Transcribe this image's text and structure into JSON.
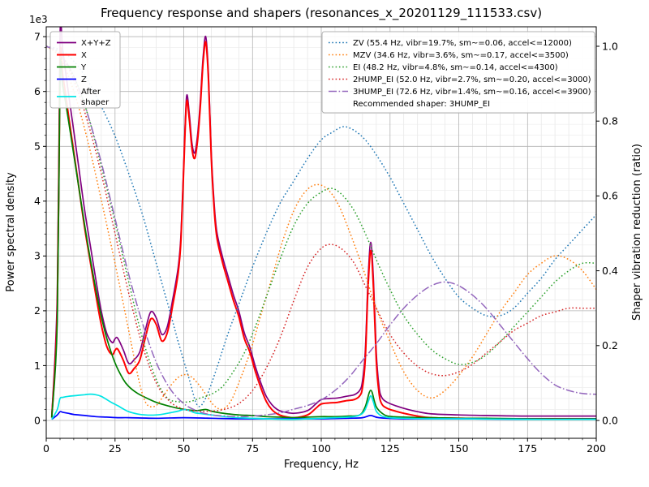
{
  "title": "Frequency response and shapers (resonances_x_20201129_111533.csv)",
  "axes": {
    "x": {
      "label": "Frequency, Hz",
      "min": 0,
      "max": 200,
      "ticks": [
        0,
        25,
        50,
        75,
        100,
        125,
        150,
        175,
        200
      ],
      "minor_step": 5
    },
    "y_left": {
      "label": "Power spectral density",
      "multiplier": "1e3",
      "min": 0,
      "max": 7,
      "ticks": [
        0,
        1,
        2,
        3,
        4,
        5,
        6,
        7
      ],
      "minor_step": 0.2
    },
    "y_right": {
      "label": "Shaper vibration reduction (ratio)",
      "min": 0,
      "max": 1,
      "ticks": [
        "0.0",
        "0.2",
        "0.4",
        "0.6",
        "0.8",
        "1.0"
      ]
    }
  },
  "legend_psd": {
    "items": [
      {
        "series": "X+Y+Z",
        "label": "X+Y+Z"
      },
      {
        "series": "X",
        "label": "X"
      },
      {
        "series": "Y",
        "label": "Y"
      },
      {
        "series": "Z",
        "label": "Z"
      },
      {
        "series": "After shaper",
        "label": "After\nshaper"
      }
    ]
  },
  "legend_shapers": {
    "items": [
      {
        "series": "ZV",
        "label": "ZV (55.4 Hz, vibr=19.7%, sm~=0.06, accel<=12000)"
      },
      {
        "series": "MZV",
        "label": "MZV (34.6 Hz, vibr=3.6%, sm~=0.17, accel<=3500)"
      },
      {
        "series": "EI",
        "label": "EI (48.2 Hz, vibr=4.8%, sm~=0.14, accel<=4300)"
      },
      {
        "series": "2HUMP_EI",
        "label": "2HUMP_EI (52.0 Hz, vibr=2.7%, sm~=0.20, accel<=3000)"
      },
      {
        "series": "3HUMP_EI",
        "label": "3HUMP_EI (72.6 Hz, vibr=1.4%, sm~=0.16, accel<=3900)"
      }
    ],
    "note": "Recommended shaper: 3HUMP_EI"
  },
  "chart_data": {
    "type": "line",
    "title": "Frequency response and shapers (resonances_x_20201129_111533.csv)",
    "xlabel": "Frequency, Hz",
    "ylabel": "Power spectral density",
    "ylabel_right": "Shaper vibration reduction (ratio)",
    "xlim": [
      0,
      200
    ],
    "ylim_left": [
      0,
      7000
    ],
    "psd_scale": 1000,
    "ylim_right": [
      0,
      1.0
    ],
    "grid": "major grey + minor lightgrey, both axes",
    "legend_positions": [
      "upper left",
      "upper right"
    ],
    "recommended_shaper": "3HUMP_EI",
    "series": [
      {
        "name": "X+Y+Z",
        "axis": "left",
        "color": "#800080",
        "style": "solid",
        "width": 1.7,
        "x": [
          2,
          4,
          5,
          6,
          8,
          10,
          12,
          14,
          16,
          18,
          20,
          22,
          24,
          25,
          26,
          28,
          30,
          32,
          34,
          36,
          38,
          40,
          42,
          44,
          46,
          48,
          49,
          50,
          51,
          52,
          53,
          54,
          55,
          56,
          57,
          58,
          59,
          60,
          61,
          62,
          64,
          66,
          68,
          70,
          72,
          74,
          76,
          78,
          80,
          82,
          84,
          86,
          90,
          95,
          98,
          100,
          103,
          106,
          109,
          112,
          114,
          115,
          116,
          117,
          118,
          119,
          120,
          121,
          122,
          124,
          127,
          130,
          135,
          140,
          150,
          160,
          175,
          200
        ],
        "y": [
          0.08,
          2.3,
          7.0,
          6.75,
          6.0,
          5.28,
          4.55,
          3.82,
          3.2,
          2.58,
          2.0,
          1.59,
          1.42,
          1.49,
          1.5,
          1.29,
          1.04,
          1.11,
          1.25,
          1.64,
          1.98,
          1.87,
          1.57,
          1.71,
          2.21,
          2.8,
          3.4,
          4.7,
          5.9,
          5.6,
          5.05,
          4.88,
          5.2,
          5.8,
          6.6,
          7.0,
          6.3,
          4.9,
          4.0,
          3.45,
          3.0,
          2.65,
          2.3,
          2.0,
          1.6,
          1.34,
          0.99,
          0.69,
          0.44,
          0.29,
          0.2,
          0.16,
          0.13,
          0.18,
          0.3,
          0.38,
          0.4,
          0.41,
          0.44,
          0.47,
          0.55,
          0.72,
          1.25,
          2.55,
          3.25,
          2.55,
          1.25,
          0.62,
          0.42,
          0.33,
          0.27,
          0.22,
          0.16,
          0.12,
          0.1,
          0.09,
          0.08,
          0.08
        ]
      },
      {
        "name": "X",
        "axis": "left",
        "color": "#ff0000",
        "style": "solid",
        "width": 2.0,
        "x": [
          2,
          4,
          5,
          6,
          8,
          10,
          12,
          14,
          16,
          18,
          20,
          22,
          24,
          25,
          26,
          28,
          30,
          32,
          34,
          36,
          38,
          40,
          42,
          44,
          46,
          48,
          49,
          50,
          51,
          52,
          53,
          54,
          55,
          56,
          57,
          58,
          59,
          60,
          61,
          62,
          64,
          66,
          68,
          70,
          72,
          74,
          76,
          78,
          80,
          82,
          84,
          86,
          90,
          95,
          98,
          100,
          103,
          106,
          109,
          112,
          114,
          115,
          116,
          117,
          118,
          119,
          120,
          121,
          122,
          124,
          127,
          130,
          135,
          140,
          150,
          160,
          175,
          200
        ],
        "y": [
          0.05,
          2.0,
          6.5,
          6.3,
          5.6,
          4.9,
          4.2,
          3.5,
          2.9,
          2.3,
          1.75,
          1.35,
          1.2,
          1.28,
          1.3,
          1.1,
          0.86,
          0.95,
          1.1,
          1.5,
          1.85,
          1.75,
          1.45,
          1.6,
          2.1,
          2.7,
          3.3,
          4.6,
          5.8,
          5.5,
          4.95,
          4.78,
          5.1,
          5.7,
          6.5,
          6.9,
          6.2,
          4.8,
          3.9,
          3.35,
          2.9,
          2.55,
          2.2,
          1.9,
          1.5,
          1.25,
          0.9,
          0.6,
          0.35,
          0.2,
          0.12,
          0.08,
          0.05,
          0.1,
          0.22,
          0.3,
          0.32,
          0.33,
          0.36,
          0.38,
          0.45,
          0.6,
          1.1,
          2.4,
          3.1,
          2.4,
          1.1,
          0.5,
          0.3,
          0.22,
          0.17,
          0.13,
          0.08,
          0.05,
          0.04,
          0.03,
          0.03,
          0.03
        ]
      },
      {
        "name": "Y",
        "axis": "left",
        "color": "#008000",
        "style": "solid",
        "width": 1.7,
        "x": [
          2,
          4,
          5,
          6,
          8,
          10,
          12,
          14,
          16,
          18,
          20,
          22,
          25,
          28,
          30,
          33,
          36,
          40,
          44,
          48,
          52,
          55,
          58,
          60,
          63,
          66,
          70,
          75,
          80,
          85,
          90,
          95,
          100,
          105,
          110,
          114,
          116,
          118,
          120,
          123,
          126,
          130,
          140,
          150,
          160,
          175,
          200
        ],
        "y": [
          0.05,
          1.8,
          6.3,
          6.1,
          5.5,
          4.85,
          4.2,
          3.55,
          2.95,
          2.4,
          1.9,
          1.5,
          1.05,
          0.75,
          0.62,
          0.5,
          0.42,
          0.33,
          0.27,
          0.22,
          0.19,
          0.18,
          0.2,
          0.17,
          0.14,
          0.12,
          0.1,
          0.09,
          0.07,
          0.06,
          0.05,
          0.06,
          0.07,
          0.07,
          0.08,
          0.1,
          0.25,
          0.55,
          0.25,
          0.1,
          0.07,
          0.06,
          0.05,
          0.04,
          0.04,
          0.03,
          0.03
        ]
      },
      {
        "name": "Z",
        "axis": "left",
        "color": "#0000ff",
        "style": "solid",
        "width": 1.7,
        "x": [
          2,
          4,
          5,
          6,
          8,
          10,
          14,
          18,
          22,
          26,
          30,
          40,
          50,
          60,
          70,
          80,
          90,
          100,
          110,
          115,
          118,
          121,
          130,
          150,
          175,
          200
        ],
        "y": [
          0.02,
          0.1,
          0.16,
          0.15,
          0.13,
          0.11,
          0.09,
          0.07,
          0.06,
          0.05,
          0.05,
          0.04,
          0.05,
          0.04,
          0.03,
          0.03,
          0.03,
          0.03,
          0.04,
          0.05,
          0.09,
          0.05,
          0.03,
          0.03,
          0.02,
          0.02
        ]
      },
      {
        "name": "After shaper",
        "axis": "left",
        "color": "#00e5e5",
        "style": "solid",
        "width": 1.7,
        "x": [
          2,
          4,
          5,
          6,
          8,
          10,
          12,
          14,
          16,
          18,
          20,
          22,
          24,
          26,
          28,
          30,
          33,
          36,
          40,
          43,
          46,
          48,
          50,
          52,
          54,
          57,
          60,
          65,
          70,
          75,
          80,
          90,
          100,
          105,
          110,
          113,
          115,
          116,
          117,
          118,
          119,
          120,
          122,
          125,
          130,
          140,
          150,
          175,
          200
        ],
        "y": [
          0.02,
          0.2,
          0.4,
          0.42,
          0.44,
          0.45,
          0.46,
          0.47,
          0.48,
          0.47,
          0.44,
          0.38,
          0.32,
          0.27,
          0.21,
          0.16,
          0.12,
          0.1,
          0.1,
          0.12,
          0.15,
          0.17,
          0.2,
          0.18,
          0.14,
          0.12,
          0.1,
          0.07,
          0.05,
          0.04,
          0.03,
          0.02,
          0.04,
          0.05,
          0.06,
          0.08,
          0.13,
          0.2,
          0.33,
          0.45,
          0.33,
          0.17,
          0.08,
          0.05,
          0.04,
          0.03,
          0.03,
          0.02,
          0.02
        ]
      },
      {
        "name": "ZV",
        "axis": "right",
        "color": "#1f77b4",
        "style": "dotted",
        "width": 1.5,
        "x": [
          0,
          5,
          10,
          15,
          20,
          25,
          30,
          35,
          40,
          45,
          48,
          52,
          55,
          58,
          62,
          66,
          70,
          75,
          80,
          85,
          90,
          95,
          100,
          104,
          108,
          112,
          116,
          120,
          125,
          130,
          135,
          140,
          145,
          150,
          155,
          160,
          165,
          170,
          175,
          180,
          185,
          190,
          195,
          200
        ],
        "y": [
          1.0,
          0.99,
          0.96,
          0.91,
          0.84,
          0.76,
          0.66,
          0.55,
          0.42,
          0.29,
          0.21,
          0.11,
          0.04,
          0.06,
          0.14,
          0.23,
          0.31,
          0.41,
          0.5,
          0.58,
          0.64,
          0.7,
          0.75,
          0.77,
          0.785,
          0.775,
          0.75,
          0.71,
          0.65,
          0.58,
          0.51,
          0.44,
          0.38,
          0.33,
          0.3,
          0.28,
          0.28,
          0.3,
          0.34,
          0.38,
          0.43,
          0.47,
          0.51,
          0.55
        ]
      },
      {
        "name": "MZV",
        "axis": "right",
        "color": "#ff7f0e",
        "style": "dotted",
        "width": 1.5,
        "x": [
          0,
          5,
          10,
          15,
          20,
          25,
          30,
          33,
          35,
          37,
          40,
          43,
          46,
          49,
          52,
          55,
          58,
          61,
          64,
          67,
          70,
          74,
          78,
          82,
          86,
          90,
          94,
          98,
          102,
          106,
          110,
          115,
          120,
          125,
          130,
          135,
          140,
          145,
          150,
          155,
          160,
          165,
          170,
          175,
          180,
          185,
          190,
          195,
          200
        ],
        "y": [
          1.0,
          0.97,
          0.88,
          0.75,
          0.59,
          0.42,
          0.24,
          0.13,
          0.07,
          0.04,
          0.04,
          0.07,
          0.1,
          0.12,
          0.12,
          0.1,
          0.07,
          0.04,
          0.03,
          0.05,
          0.1,
          0.18,
          0.28,
          0.38,
          0.48,
          0.56,
          0.61,
          0.63,
          0.62,
          0.58,
          0.51,
          0.41,
          0.3,
          0.21,
          0.13,
          0.08,
          0.06,
          0.08,
          0.12,
          0.17,
          0.23,
          0.29,
          0.34,
          0.39,
          0.42,
          0.44,
          0.43,
          0.4,
          0.35
        ]
      },
      {
        "name": "EI",
        "axis": "right",
        "color": "#2ca02c",
        "style": "dotted",
        "width": 1.5,
        "x": [
          0,
          5,
          10,
          15,
          20,
          25,
          30,
          35,
          40,
          44,
          48,
          52,
          56,
          60,
          64,
          68,
          72,
          76,
          80,
          85,
          90,
          95,
          100,
          104,
          108,
          112,
          116,
          120,
          125,
          130,
          135,
          140,
          145,
          150,
          155,
          160,
          165,
          170,
          175,
          180,
          185,
          190,
          195,
          200
        ],
        "y": [
          1.0,
          0.98,
          0.92,
          0.82,
          0.68,
          0.53,
          0.37,
          0.22,
          0.11,
          0.06,
          0.05,
          0.05,
          0.06,
          0.07,
          0.09,
          0.13,
          0.18,
          0.25,
          0.33,
          0.43,
          0.52,
          0.58,
          0.61,
          0.62,
          0.6,
          0.56,
          0.5,
          0.43,
          0.35,
          0.28,
          0.23,
          0.19,
          0.165,
          0.15,
          0.155,
          0.175,
          0.21,
          0.25,
          0.29,
          0.33,
          0.37,
          0.4,
          0.42,
          0.42
        ]
      },
      {
        "name": "2HUMP_EI",
        "axis": "right",
        "color": "#d62728",
        "style": "dotted",
        "width": 1.5,
        "x": [
          0,
          5,
          10,
          15,
          20,
          25,
          30,
          35,
          40,
          45,
          50,
          55,
          60,
          65,
          70,
          75,
          80,
          85,
          90,
          95,
          100,
          104,
          108,
          112,
          116,
          120,
          125,
          130,
          135,
          140,
          145,
          150,
          155,
          160,
          165,
          170,
          175,
          180,
          185,
          190,
          195,
          200
        ],
        "y": [
          1.0,
          0.98,
          0.91,
          0.8,
          0.66,
          0.5,
          0.34,
          0.2,
          0.1,
          0.05,
          0.03,
          0.025,
          0.025,
          0.03,
          0.045,
          0.08,
          0.14,
          0.22,
          0.32,
          0.41,
          0.46,
          0.47,
          0.455,
          0.42,
          0.36,
          0.3,
          0.23,
          0.18,
          0.145,
          0.125,
          0.12,
          0.13,
          0.15,
          0.18,
          0.21,
          0.24,
          0.26,
          0.28,
          0.29,
          0.3,
          0.3,
          0.3
        ]
      },
      {
        "name": "3HUMP_EI",
        "axis": "right",
        "color": "#9467bd",
        "style": "dashdot",
        "width": 1.5,
        "x": [
          0,
          5,
          10,
          15,
          20,
          25,
          30,
          35,
          40,
          45,
          50,
          55,
          60,
          65,
          70,
          75,
          80,
          85,
          90,
          95,
          100,
          105,
          110,
          115,
          120,
          125,
          130,
          135,
          140,
          145,
          150,
          155,
          160,
          165,
          170,
          175,
          180,
          185,
          190,
          195,
          200
        ],
        "y": [
          1.0,
          0.98,
          0.92,
          0.82,
          0.69,
          0.54,
          0.39,
          0.26,
          0.155,
          0.085,
          0.045,
          0.025,
          0.015,
          0.012,
          0.01,
          0.012,
          0.015,
          0.02,
          0.03,
          0.04,
          0.055,
          0.08,
          0.115,
          0.16,
          0.205,
          0.255,
          0.3,
          0.335,
          0.36,
          0.37,
          0.36,
          0.335,
          0.3,
          0.255,
          0.21,
          0.165,
          0.125,
          0.095,
          0.08,
          0.072,
          0.07
        ]
      }
    ]
  }
}
